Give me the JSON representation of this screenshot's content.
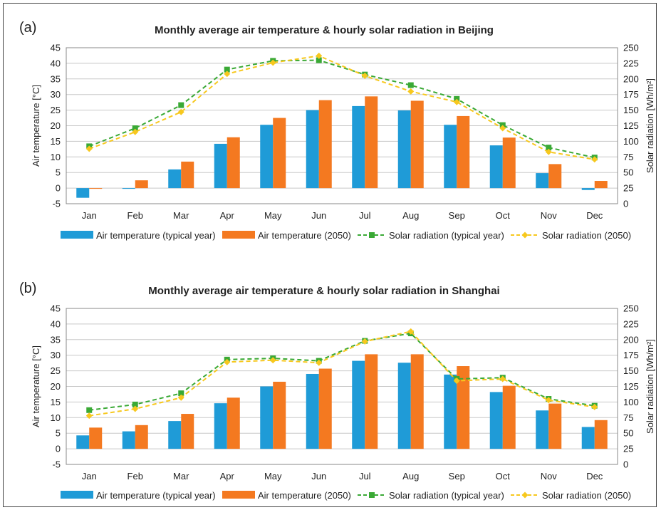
{
  "colors": {
    "temp_typical": "#1F9BD7",
    "temp_2050": "#F47920",
    "solar_typical": "#3AA935",
    "solar_2050": "#F7C81E",
    "grid": "#C8C8C8"
  },
  "chart_data": [
    {
      "type": "bar",
      "panel_label": "(a)",
      "title": "Monthly average air temperature & hourly solar radiation in Beijing",
      "xlabel": "",
      "ylabel": "Air temperature [°C]",
      "y2label": "Solar radiation [Wh/m²]",
      "ylim": [
        -5,
        45
      ],
      "y2lim": [
        0,
        250
      ],
      "yticks": [
        "-5",
        "0",
        "5",
        "10",
        "15",
        "20",
        "25",
        "30",
        "35",
        "40",
        "45"
      ],
      "y2ticks": [
        "0",
        "25",
        "50",
        "75",
        "100",
        "125",
        "150",
        "175",
        "200",
        "225",
        "250"
      ],
      "grid": true,
      "legend_position": "bottom",
      "categories": [
        "Jan",
        "Feb",
        "Mar",
        "Apr",
        "May",
        "Jun",
        "Jul",
        "Aug",
        "Sep",
        "Oct",
        "Nov",
        "Dec"
      ],
      "series": [
        {
          "name": "Air temperature (typical year)",
          "kind": "bar",
          "axis": "left",
          "color_key": "temp_typical",
          "values": [
            -3.1,
            -0.1,
            6.0,
            14.2,
            20.3,
            25.0,
            26.3,
            24.9,
            20.3,
            13.7,
            4.8,
            -0.6
          ]
        },
        {
          "name": "Air temperature (2050)",
          "kind": "bar",
          "axis": "left",
          "color_key": "temp_2050",
          "values": [
            -0.1,
            2.5,
            8.5,
            16.3,
            22.5,
            28.2,
            29.4,
            28.0,
            23.1,
            16.2,
            7.7,
            2.3
          ]
        },
        {
          "name": "Solar radiation (typical year)",
          "kind": "line",
          "axis": "right",
          "color_key": "solar_typical",
          "values": [
            92,
            121,
            158,
            215,
            229,
            230,
            207,
            190,
            168,
            126,
            90,
            74
          ]
        },
        {
          "name": "Solar radiation (2050)",
          "kind": "line",
          "axis": "right",
          "color_key": "solar_2050",
          "values": [
            88,
            115,
            147,
            208,
            226,
            237,
            205,
            180,
            163,
            121,
            83,
            71
          ]
        }
      ]
    },
    {
      "type": "bar",
      "panel_label": "(b)",
      "title": "Monthly average air temperature & hourly solar radiation in Shanghai",
      "xlabel": "",
      "ylabel": "Air temperature [°C]",
      "y2label": "Solar radiation [Wh/m²]",
      "ylim": [
        -5,
        45
      ],
      "y2lim": [
        0,
        250
      ],
      "yticks": [
        "-5",
        "0",
        "5",
        "10",
        "15",
        "20",
        "25",
        "30",
        "35",
        "40",
        "45"
      ],
      "y2ticks": [
        "0",
        "25",
        "50",
        "75",
        "100",
        "125",
        "150",
        "175",
        "200",
        "225",
        "250"
      ],
      "grid": true,
      "legend_position": "bottom",
      "categories": [
        "Jan",
        "Feb",
        "Mar",
        "Apr",
        "May",
        "Jun",
        "Jul",
        "Aug",
        "Sep",
        "Oct",
        "Nov",
        "Dec"
      ],
      "series": [
        {
          "name": "Air temperature (typical year)",
          "kind": "bar",
          "axis": "left",
          "color_key": "temp_typical",
          "values": [
            4.3,
            5.6,
            8.9,
            14.6,
            20.0,
            24.0,
            28.2,
            27.6,
            23.8,
            18.2,
            12.3,
            7.0
          ]
        },
        {
          "name": "Air temperature (2050)",
          "kind": "bar",
          "axis": "left",
          "color_key": "temp_2050",
          "values": [
            6.8,
            7.6,
            11.2,
            16.4,
            21.5,
            25.7,
            30.3,
            30.3,
            26.5,
            20.2,
            14.5,
            9.2
          ]
        },
        {
          "name": "Solar radiation (typical year)",
          "kind": "line",
          "axis": "right",
          "color_key": "solar_typical",
          "values": [
            87,
            96,
            114,
            168,
            170,
            166,
            198,
            210,
            137,
            139,
            105,
            94
          ]
        },
        {
          "name": "Solar radiation (2050)",
          "kind": "line",
          "axis": "right",
          "color_key": "solar_2050",
          "values": [
            78,
            89,
            107,
            164,
            167,
            163,
            197,
            213,
            134,
            137,
            103,
            92
          ]
        }
      ]
    }
  ]
}
